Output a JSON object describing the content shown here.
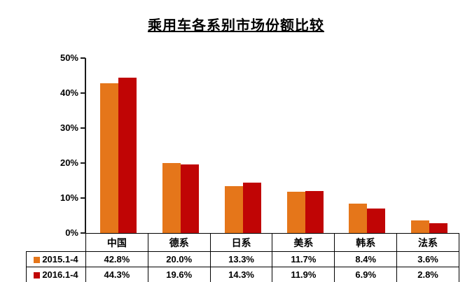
{
  "title": "乘用车各系别市场份额比较",
  "chart_data": {
    "type": "bar",
    "title": "乘用车各系别市场份额比较",
    "categories": [
      "中国",
      "德系",
      "日系",
      "美系",
      "韩系",
      "法系"
    ],
    "series": [
      {
        "name": "2015.1-4",
        "color": "#E5761A",
        "values": [
          42.8,
          20.0,
          13.3,
          11.7,
          8.4,
          3.6
        ]
      },
      {
        "name": "2016.1-4",
        "color": "#C00505",
        "values": [
          44.3,
          19.6,
          14.3,
          11.9,
          6.9,
          2.8
        ]
      }
    ],
    "value_suffix": "%",
    "ylabel": "",
    "xlabel": "",
    "ylim": [
      0,
      50
    ],
    "ytick_interval": 10,
    "yticks": [
      "50%",
      "40%",
      "30%",
      "20%",
      "10%",
      "0%"
    ],
    "grid": false,
    "legend_position": "table-left",
    "table_values": [
      [
        "42.8%",
        "20.0%",
        "13.3%",
        "11.7%",
        "8.4%",
        "3.6%"
      ],
      [
        "44.3%",
        "19.6%",
        "14.3%",
        "11.9%",
        "6.9%",
        "2.8%"
      ]
    ]
  },
  "colors": {
    "axis": "#1a1a1a",
    "table_border": "#000000",
    "background": "#ffffff",
    "series_2015": "#E5761A",
    "series_2016": "#C00505"
  }
}
